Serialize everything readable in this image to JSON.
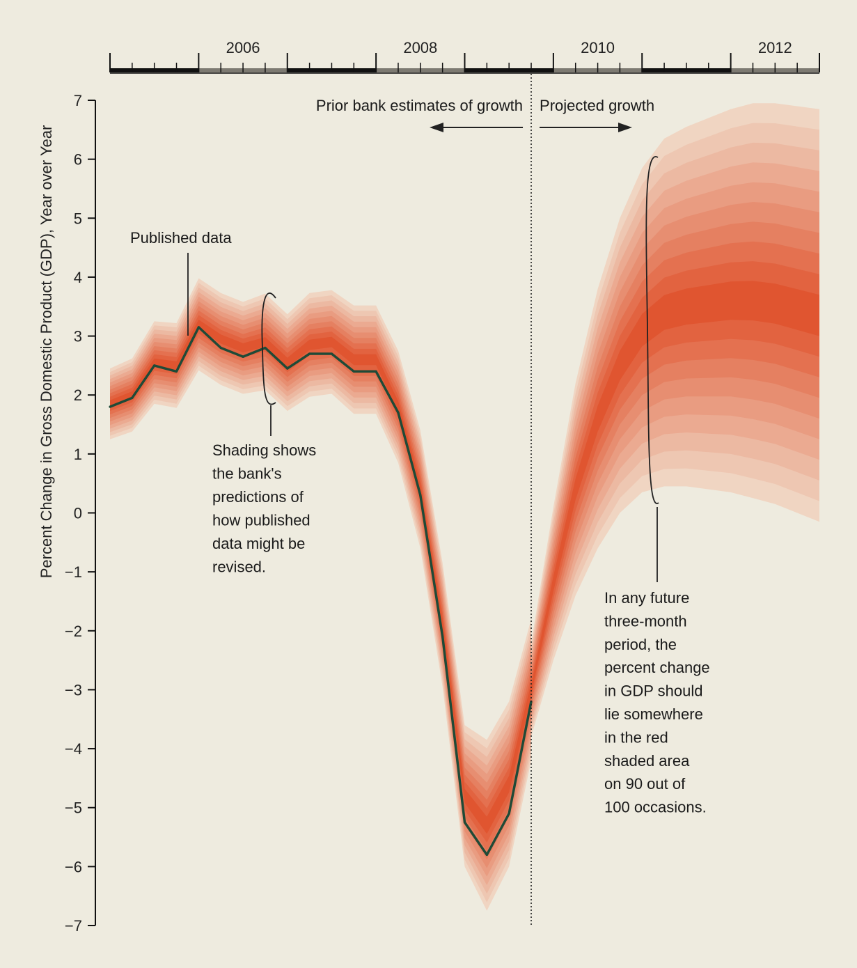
{
  "chart_data": {
    "type": "area",
    "ylabel": "Percent Change in Gross Domestic Product (GDP), Year over Year",
    "ylim": [
      -7,
      7
    ],
    "y_ticks": [
      "7",
      "6",
      "5",
      "4",
      "3",
      "2",
      "1",
      "0",
      "−1",
      "−2",
      "−3",
      "−4",
      "−5",
      "−6",
      "−7"
    ],
    "x_range": [
      2005.0,
      2013.0
    ],
    "year_labels": [
      "2006",
      "2008",
      "2010",
      "2012"
    ],
    "projection_start": 2009.75,
    "published_data": {
      "name": "Published data",
      "x": [
        2005.0,
        2005.25,
        2005.5,
        2005.75,
        2006.0,
        2006.25,
        2006.5,
        2006.75,
        2007.0,
        2007.25,
        2007.5,
        2007.75,
        2008.0,
        2008.25,
        2008.5,
        2008.75,
        2009.0,
        2009.25,
        2009.5,
        2009.75
      ],
      "values": [
        1.8,
        1.95,
        2.5,
        2.4,
        3.15,
        2.8,
        2.65,
        2.8,
        2.45,
        2.7,
        2.7,
        2.4,
        2.4,
        1.7,
        0.3,
        -2.1,
        -5.25,
        -5.8,
        -5.1,
        -3.2
      ]
    },
    "past_band": {
      "center": [
        1.85,
        2.0,
        2.55,
        2.5,
        3.2,
        2.95,
        2.8,
        2.9,
        2.55,
        2.85,
        2.9,
        2.6,
        2.6,
        1.8,
        0.4,
        -1.9,
        -4.8,
        -5.3,
        -4.6,
        -3.0
      ],
      "half_width": [
        0.6,
        0.62,
        0.7,
        0.72,
        0.78,
        0.78,
        0.78,
        0.82,
        0.82,
        0.88,
        0.88,
        0.92,
        0.92,
        0.95,
        1.0,
        1.05,
        1.2,
        1.45,
        1.4,
        1.2
      ]
    },
    "projection_band": {
      "x": [
        2009.75,
        2010.0,
        2010.25,
        2010.5,
        2010.75,
        2011.0,
        2011.25,
        2011.5,
        2011.75,
        2012.0,
        2012.25,
        2012.5,
        2012.75,
        2013.0
      ],
      "center": [
        -3.0,
        -1.2,
        0.4,
        1.6,
        2.5,
        3.1,
        3.4,
        3.5,
        3.55,
        3.6,
        3.6,
        3.55,
        3.45,
        3.35
      ],
      "half_width": [
        0.8,
        1.3,
        1.8,
        2.2,
        2.5,
        2.75,
        2.95,
        3.05,
        3.15,
        3.25,
        3.35,
        3.4,
        3.45,
        3.5
      ]
    },
    "annotations": {
      "prior_label": "Prior bank estimates of growth",
      "projected_label": "Projected growth",
      "published_label": "Published data",
      "shading_lines": [
        "Shading shows",
        "the bank's",
        "predictions of",
        "how published",
        "data might be",
        "revised."
      ],
      "future_lines": [
        "In any future",
        "three-month",
        "period, the",
        "percent change",
        "in GDP should",
        "lie somewhere",
        "in the red",
        "shaded area",
        "on 90 out of",
        "100 occasions."
      ]
    },
    "colors": {
      "background": "#eeebdf",
      "band_core": "#e05530",
      "band_outer": "#f0d5c2",
      "line": "#1f4a37",
      "timeline_dark": "#111111",
      "timeline_grey": "#7d7a72"
    }
  }
}
